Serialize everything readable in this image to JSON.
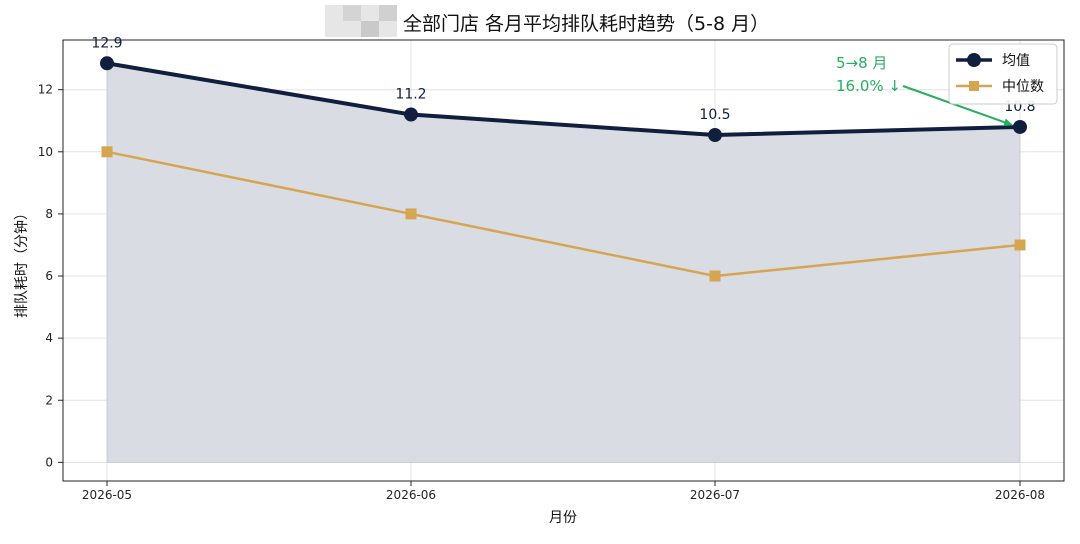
{
  "chart_data": {
    "type": "line",
    "title": "全部门店 各月平均排队耗时趋势（5-8 月）",
    "xlabel": "月份",
    "ylabel": "排队耗时（分钟）",
    "categories": [
      "2026-05",
      "2026-06",
      "2026-07",
      "2026-08"
    ],
    "ylim": [
      -0.6,
      13.6
    ],
    "yticks": [
      0,
      2,
      4,
      6,
      8,
      10,
      12
    ],
    "grid": true,
    "legend_position": "top-right",
    "series": [
      {
        "name": "均值",
        "values": [
          12.85,
          11.2,
          10.54,
          10.8
        ],
        "labels": [
          "12.9",
          "11.2",
          "10.5",
          "10.8"
        ],
        "color": "#0f1f3d",
        "marker": "circle",
        "fill_below": true,
        "fill_color": "#d9dde3"
      },
      {
        "name": "中位数",
        "values": [
          10,
          8,
          6,
          7
        ],
        "color": "#d6a552",
        "marker": "square"
      }
    ],
    "annotation": {
      "line1": "5→8 月",
      "line2": "16.0% ↓",
      "color": "#27ae60",
      "points_to": "2026-08"
    }
  }
}
